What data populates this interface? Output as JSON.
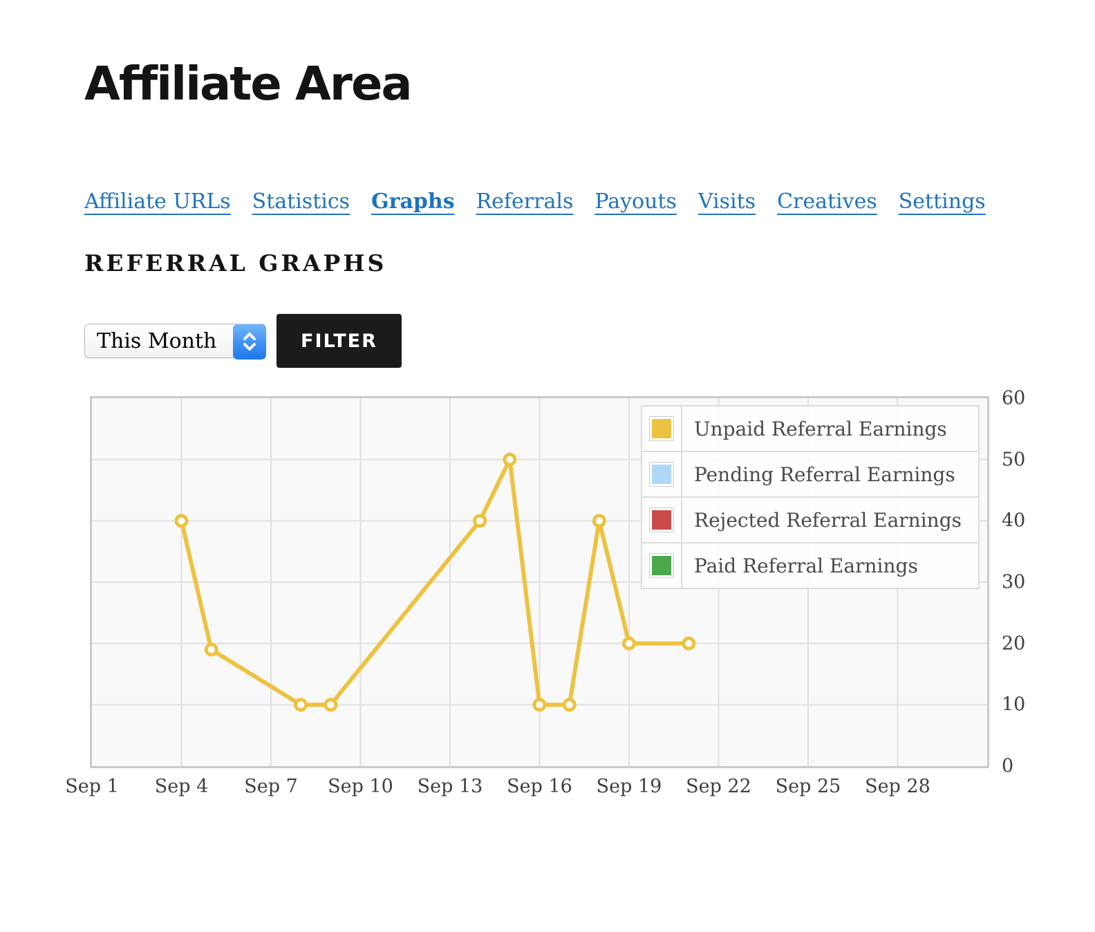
{
  "page": {
    "title": "Affiliate Area"
  },
  "nav": {
    "items": [
      {
        "label": "Affiliate URLs",
        "active": false
      },
      {
        "label": "Statistics",
        "active": false
      },
      {
        "label": "Graphs",
        "active": true
      },
      {
        "label": "Referrals",
        "active": false
      },
      {
        "label": "Payouts",
        "active": false
      },
      {
        "label": "Visits",
        "active": false
      },
      {
        "label": "Creatives",
        "active": false
      },
      {
        "label": "Settings",
        "active": false
      }
    ]
  },
  "section": {
    "heading": "REFERRAL GRAPHS"
  },
  "filter": {
    "date_range_value": "This Month",
    "button_label": "FILTER"
  },
  "colors": {
    "link": "#1e73be",
    "axis_text": "#3f3f3f",
    "chart_bg": "#f9f9f9",
    "grid_line": "#e0e0e0",
    "chart_border": "#c9c9c9",
    "filter_button_bg": "#1b1b1b",
    "filter_button_text": "#ffffff",
    "select_arrow_top": "#76b6f7",
    "select_arrow_bottom": "#1e78ec"
  },
  "chart_data": {
    "type": "line",
    "title": "",
    "xlabel": "",
    "ylabel": "",
    "x_unit": "day of September",
    "x_range": [
      1,
      31
    ],
    "ylim": [
      0,
      60
    ],
    "y_ticks": [
      0,
      10,
      20,
      30,
      40,
      50,
      60
    ],
    "x_tick_days": [
      1,
      4,
      7,
      10,
      13,
      16,
      19,
      22,
      25,
      28
    ],
    "x_tick_labels": [
      "Sep 1",
      "Sep 4",
      "Sep 7",
      "Sep 10",
      "Sep 13",
      "Sep 16",
      "Sep 19",
      "Sep 22",
      "Sep 25",
      "Sep 28"
    ],
    "grid": true,
    "legend_position": "top-right",
    "series": [
      {
        "name": "Unpaid Referral Earnings",
        "color": "#edc240",
        "points": [
          [
            4,
            40
          ],
          [
            5,
            19
          ],
          [
            8,
            10
          ],
          [
            9,
            10
          ],
          [
            14,
            40
          ],
          [
            15,
            50
          ],
          [
            16,
            10
          ],
          [
            17,
            10
          ],
          [
            18,
            40
          ],
          [
            19,
            20
          ],
          [
            21,
            20
          ]
        ]
      },
      {
        "name": "Pending Referral Earnings",
        "color": "#afd8f8",
        "points": []
      },
      {
        "name": "Rejected Referral Earnings",
        "color": "#cb4b4b",
        "points": []
      },
      {
        "name": "Paid Referral Earnings",
        "color": "#4da74d",
        "points": []
      }
    ]
  }
}
